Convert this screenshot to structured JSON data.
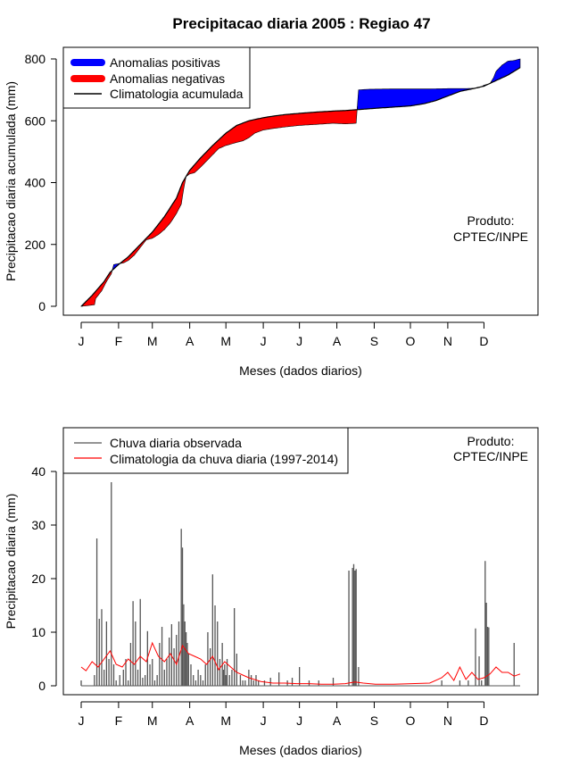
{
  "figure": {
    "title": "Precipitacao diaria 2005 : Regiao 47"
  },
  "chart_data": [
    {
      "type": "area",
      "name": "accumulated",
      "xlabel": "Meses (dados diarios)",
      "ylabel": "Precipitacao diaria acumulada (mm)",
      "xlim": [
        1,
        365
      ],
      "ylim": [
        0,
        800
      ],
      "yticks": [
        0,
        200,
        400,
        600,
        800
      ],
      "month_labels": [
        "J",
        "F",
        "M",
        "A",
        "M",
        "J",
        "J",
        "A",
        "S",
        "O",
        "N",
        "D"
      ],
      "month_days": [
        1,
        32,
        60,
        91,
        121,
        152,
        182,
        213,
        244,
        274,
        305,
        335
      ],
      "legend": [
        "Anomalias positivas",
        "Anomalias negativas",
        "Climatologia acumulada"
      ],
      "legend_position": "top-left",
      "note_line1": "Produto:",
      "note_line2": "CPTEC/INPE",
      "colors": {
        "positive": "#0000ff",
        "negative": "#ff0000",
        "climatology": "#000000"
      },
      "climatology": {
        "x": [
          1,
          10,
          20,
          25,
          32,
          40,
          50,
          60,
          70,
          80,
          85,
          91,
          100,
          110,
          121,
          130,
          140,
          152,
          160,
          170,
          182,
          195,
          213,
          220,
          230,
          244,
          255,
          274,
          285,
          295,
          305,
          315,
          325,
          335,
          345,
          355,
          365
        ],
        "y": [
          0,
          35,
          80,
          110,
          135,
          160,
          200,
          240,
          290,
          350,
          400,
          440,
          480,
          520,
          560,
          585,
          600,
          610,
          615,
          620,
          624,
          628,
          632,
          633,
          636,
          640,
          643,
          648,
          655,
          665,
          680,
          695,
          703,
          712,
          730,
          748,
          772
        ]
      },
      "observed": {
        "x": [
          1,
          8,
          12,
          13,
          18,
          22,
          26,
          28,
          32,
          36,
          40,
          45,
          50,
          55,
          60,
          65,
          70,
          75,
          80,
          84,
          86,
          88,
          91,
          95,
          100,
          105,
          110,
          115,
          121,
          128,
          135,
          140,
          145,
          152,
          160,
          170,
          182,
          195,
          210,
          220,
          229,
          231,
          240,
          260,
          274,
          290,
          305,
          320,
          330,
          333,
          335,
          340,
          343,
          345,
          350,
          355,
          360,
          365
        ],
        "y": [
          0,
          3,
          5,
          25,
          50,
          80,
          105,
          135,
          138,
          140,
          148,
          165,
          190,
          215,
          220,
          232,
          248,
          270,
          300,
          330,
          380,
          420,
          428,
          432,
          450,
          470,
          490,
          510,
          520,
          528,
          535,
          545,
          560,
          570,
          575,
          580,
          585,
          588,
          592,
          590,
          592,
          700,
          702,
          703,
          703,
          703,
          704,
          704,
          706,
          710,
          715,
          720,
          740,
          760,
          780,
          793,
          795,
          800
        ]
      }
    },
    {
      "type": "bar",
      "name": "daily",
      "xlabel": "Meses (dados diarios)",
      "ylabel": "Precipitacao diaria (mm)",
      "xlim": [
        1,
        365
      ],
      "ylim": [
        0,
        40
      ],
      "yticks": [
        0,
        10,
        20,
        30,
        40
      ],
      "month_labels": [
        "J",
        "F",
        "M",
        "A",
        "M",
        "J",
        "J",
        "A",
        "S",
        "O",
        "N",
        "D"
      ],
      "month_days": [
        1,
        32,
        60,
        91,
        121,
        152,
        182,
        213,
        244,
        274,
        305,
        335
      ],
      "legend": [
        "Chuva diaria observada",
        "Climatologia da chuva diaria (1997-2014)"
      ],
      "legend_position": "top-left",
      "note_line1": "Produto:",
      "note_line2": "CPTEC/INPE",
      "colors": {
        "observed": "#555555",
        "climatology": "#ff0000"
      },
      "observed": {
        "x": [
          1,
          12,
          14,
          16,
          18,
          20,
          22,
          24,
          26,
          28,
          30,
          33,
          36,
          38,
          40,
          42,
          44,
          46,
          48,
          50,
          52,
          54,
          56,
          58,
          60,
          62,
          64,
          66,
          68,
          70,
          72,
          74,
          76,
          78,
          80,
          82,
          84,
          85,
          86,
          87,
          88,
          89,
          90,
          92,
          94,
          96,
          98,
          100,
          102,
          104,
          106,
          108,
          110,
          112,
          114,
          116,
          118,
          119,
          120,
          121,
          122,
          124,
          126,
          128,
          130,
          133,
          135,
          137,
          140,
          142,
          144,
          146,
          148,
          153,
          158,
          165,
          172,
          176,
          182,
          190,
          198,
          210,
          223,
          226,
          227,
          228,
          229,
          231,
          300,
          315,
          322,
          328,
          331,
          333,
          336,
          337,
          338,
          339,
          360
        ],
        "y": [
          1,
          2,
          27.5,
          12.5,
          14.3,
          3,
          12,
          5,
          38,
          4,
          1,
          2,
          3,
          5,
          1,
          8,
          15.8,
          12,
          3,
          16.2,
          1.5,
          2,
          10.2,
          4,
          5,
          1,
          2,
          8,
          11,
          3,
          5,
          9,
          11.5,
          7,
          9.5,
          12,
          29.3,
          25.8,
          15.2,
          12,
          10,
          8,
          6,
          4,
          2,
          1,
          3,
          2,
          1,
          4,
          10,
          7,
          20.8,
          15,
          12,
          5,
          8,
          3,
          4,
          2,
          5,
          2,
          3,
          14.5,
          6,
          2,
          1,
          1,
          3,
          2,
          1,
          2,
          1,
          1,
          1.5,
          2.5,
          1,
          1.5,
          3.5,
          1,
          1,
          1.5,
          21.5,
          22,
          22.7,
          21.5,
          21.8,
          3.5,
          1,
          1,
          1,
          10.7,
          5.5,
          1,
          23.3,
          15.5,
          11,
          10.9,
          8
        ]
      },
      "climatology": {
        "x": [
          1,
          5,
          10,
          15,
          20,
          25,
          30,
          35,
          40,
          45,
          50,
          55,
          60,
          65,
          70,
          75,
          80,
          85,
          90,
          95,
          100,
          105,
          110,
          115,
          120,
          125,
          130,
          135,
          140,
          150,
          160,
          170,
          180,
          190,
          200,
          210,
          220,
          228,
          235,
          245,
          260,
          275,
          290,
          300,
          305,
          310,
          315,
          320,
          325,
          330,
          335,
          340,
          345,
          350,
          355,
          360,
          365
        ],
        "y": [
          3.5,
          2.8,
          4.5,
          3.5,
          5,
          6.5,
          4,
          3.5,
          5,
          4,
          5.5,
          4.5,
          8,
          5.5,
          4.5,
          6,
          4,
          7.5,
          6,
          5.5,
          5,
          4,
          5.5,
          3,
          4.5,
          3.5,
          2.5,
          2,
          1.5,
          0.8,
          0.5,
          0.5,
          0.4,
          0.4,
          0.3,
          0.3,
          0.4,
          0.7,
          0.5,
          0.3,
          0.3,
          0.4,
          0.5,
          1.5,
          2.5,
          1,
          3.5,
          1.2,
          2.5,
          1.2,
          1.5,
          2.2,
          3.5,
          2.5,
          2.5,
          1.8,
          2.2
        ]
      }
    }
  ]
}
